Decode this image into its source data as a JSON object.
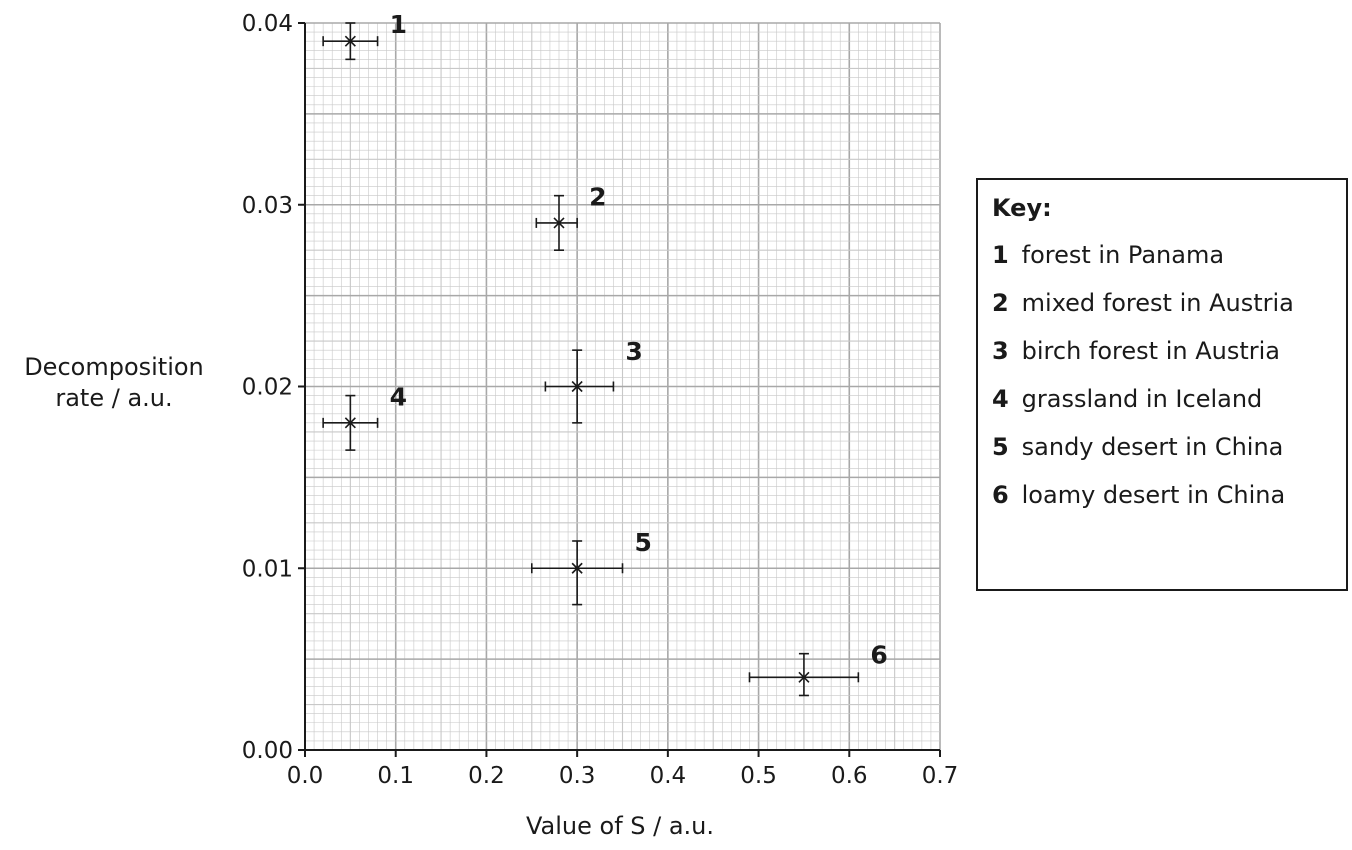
{
  "chart_data": {
    "type": "scatter",
    "xlabel": "Value of S / a.u.",
    "ylabel_lines": [
      "Decomposition",
      "rate / a.u."
    ],
    "xlim": [
      0.0,
      0.7
    ],
    "ylim": [
      0.0,
      0.04
    ],
    "x_ticks": [
      0.0,
      0.1,
      0.2,
      0.3,
      0.4,
      0.5,
      0.6,
      0.7
    ],
    "x_tick_labels": [
      "0.0",
      "0.1",
      "0.2",
      "0.3",
      "0.4",
      "0.5",
      "0.6",
      "0.7"
    ],
    "y_ticks": [
      0.0,
      0.01,
      0.02,
      0.03,
      0.04
    ],
    "y_tick_labels": [
      "0.00",
      "0.01",
      "0.02",
      "0.03",
      "0.04"
    ],
    "grid": true,
    "legend_position": "right",
    "points": [
      {
        "label": "1",
        "x": 0.05,
        "y": 0.039,
        "x_err": [
          0.02,
          0.08
        ],
        "y_err": [
          0.038,
          0.04
        ]
      },
      {
        "label": "2",
        "x": 0.28,
        "y": 0.029,
        "x_err": [
          0.255,
          0.3
        ],
        "y_err": [
          0.0275,
          0.0305
        ]
      },
      {
        "label": "3",
        "x": 0.3,
        "y": 0.02,
        "x_err": [
          0.265,
          0.34
        ],
        "y_err": [
          0.018,
          0.022
        ]
      },
      {
        "label": "4",
        "x": 0.05,
        "y": 0.018,
        "x_err": [
          0.02,
          0.08
        ],
        "y_err": [
          0.0165,
          0.0195
        ]
      },
      {
        "label": "5",
        "x": 0.3,
        "y": 0.01,
        "x_err": [
          0.25,
          0.35
        ],
        "y_err": [
          0.008,
          0.0115
        ]
      },
      {
        "label": "6",
        "x": 0.55,
        "y": 0.004,
        "x_err": [
          0.49,
          0.61
        ],
        "y_err": [
          0.003,
          0.0053
        ]
      }
    ],
    "key": {
      "title": "Key:",
      "entries": [
        {
          "num": "1",
          "text": "forest in Panama"
        },
        {
          "num": "2",
          "text": "mixed forest in Austria"
        },
        {
          "num": "3",
          "text": "birch forest in Austria"
        },
        {
          "num": "4",
          "text": "grassland in Iceland"
        },
        {
          "num": "5",
          "text": "sandy desert in China"
        },
        {
          "num": "6",
          "text": "loamy desert in China"
        }
      ]
    },
    "colors": {
      "grid_minor": "#c8c8c8",
      "grid_major": "#a8a8a8",
      "ink": "#1a1a1a"
    }
  }
}
